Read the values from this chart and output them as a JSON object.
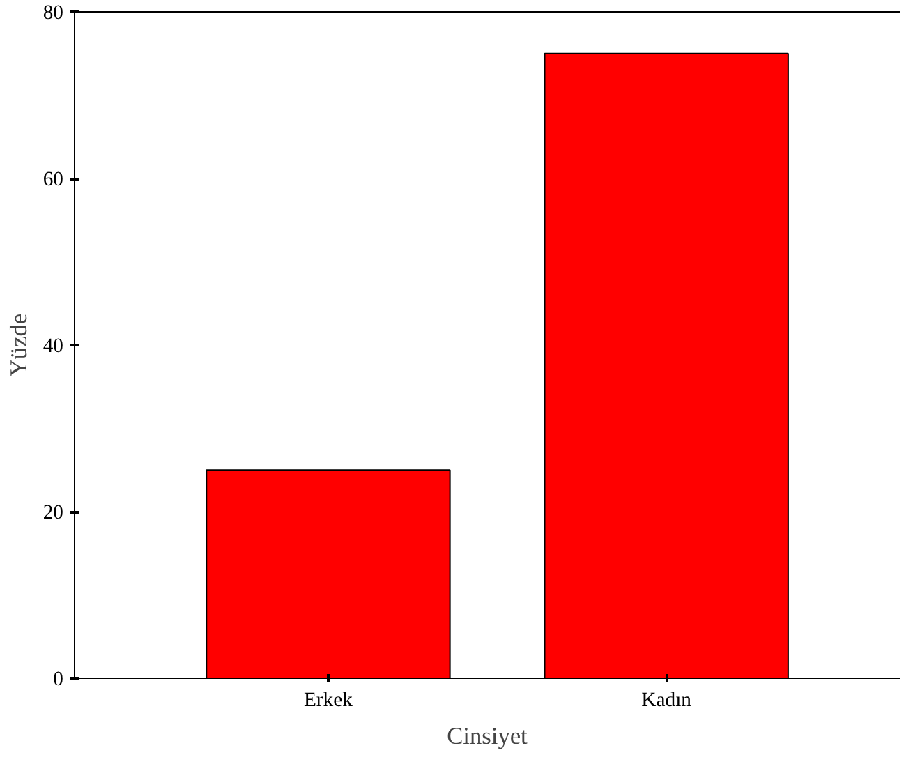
{
  "chart_data": {
    "type": "bar",
    "xlabel": "Cinsiyet",
    "ylabel": "Yüzde",
    "categories": [
      "Erkek",
      "Kadın"
    ],
    "values": [
      25,
      75
    ],
    "color": "#ff0000",
    "ylim": [
      0,
      80
    ],
    "yticks": [
      0,
      20,
      40,
      60,
      80
    ],
    "grid": false
  }
}
